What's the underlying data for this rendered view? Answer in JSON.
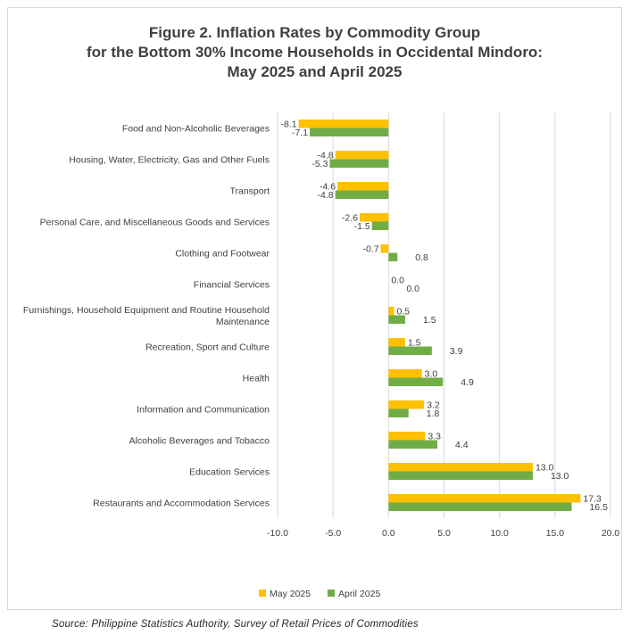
{
  "chart_data": {
    "type": "bar",
    "orientation": "horizontal",
    "title_lines": [
      "Figure 2. Inflation Rates by Commodity Group",
      "for the Bottom 30% Income Households in Occidental Mindoro:",
      "May 2025 and April 2025"
    ],
    "categories": [
      "Food and Non-Alcoholic Beverages",
      "Housing, Water, Electricity, Gas and Other Fuels",
      "Transport",
      "Personal Care, and Miscellaneous Goods and Services",
      "Clothing and Footwear",
      "Financial Services",
      "Furnishings, Household Equipment and Routine Household Maintenance",
      "Recreation, Sport and Culture",
      "Health",
      "Information and Communication",
      "Alcoholic Beverages and Tobacco",
      "Education Services",
      "Restaurants and Accommodation Services"
    ],
    "category_lines": [
      [
        "Food and Non-Alcoholic Beverages"
      ],
      [
        "Housing, Water, Electricity, Gas and Other Fuels"
      ],
      [
        "Transport"
      ],
      [
        "Personal Care, and Miscellaneous Goods and Services"
      ],
      [
        "Clothing and Footwear"
      ],
      [
        "Financial Services"
      ],
      [
        "Furnishings, Household Equipment and Routine Household",
        "Maintenance"
      ],
      [
        "Recreation, Sport and Culture"
      ],
      [
        "Health"
      ],
      [
        "Information and Communication"
      ],
      [
        "Alcoholic Beverages and Tobacco"
      ],
      [
        "Education Services"
      ],
      [
        "Restaurants and Accommodation Services"
      ]
    ],
    "series": [
      {
        "name": "May 2025",
        "color": "#FFC000",
        "values": [
          -8.1,
          -4.8,
          -4.6,
          -2.6,
          -0.7,
          0.0,
          0.5,
          1.5,
          3.0,
          3.2,
          3.3,
          13.0,
          17.3
        ],
        "labels": [
          "-8.1",
          "-4.8",
          "-4.6",
          "-2.6",
          "-0.7",
          "0.0",
          "0.5",
          "1.5",
          "3.0",
          "3.2",
          "3.3",
          "13.0",
          "17.3"
        ]
      },
      {
        "name": "April 2025",
        "color": "#70AD47",
        "values": [
          -7.1,
          -5.3,
          -4.8,
          -1.5,
          0.8,
          0.0,
          1.5,
          3.9,
          4.9,
          1.8,
          4.4,
          13.0,
          16.5
        ],
        "labels": [
          "-7.1",
          "-5.3",
          "-4.8",
          "-1.5",
          "0.8",
          "0.0",
          "1.5",
          "3.9",
          "4.9",
          "1.8",
          "4.4",
          "13.0",
          "16.5"
        ]
      }
    ],
    "xlim": [
      -10,
      20
    ],
    "xticks": [
      -10,
      -5,
      0,
      5,
      10,
      15,
      20
    ],
    "xtick_labels": [
      "-10.0",
      "-5.0",
      "0.0",
      "5.0",
      "10.0",
      "15.0",
      "20.0"
    ],
    "grid": "vertical",
    "legend_position": "bottom"
  },
  "source_text": "Source: Philippine Statistics Authority, Survey of Retail Prices of Commodities"
}
